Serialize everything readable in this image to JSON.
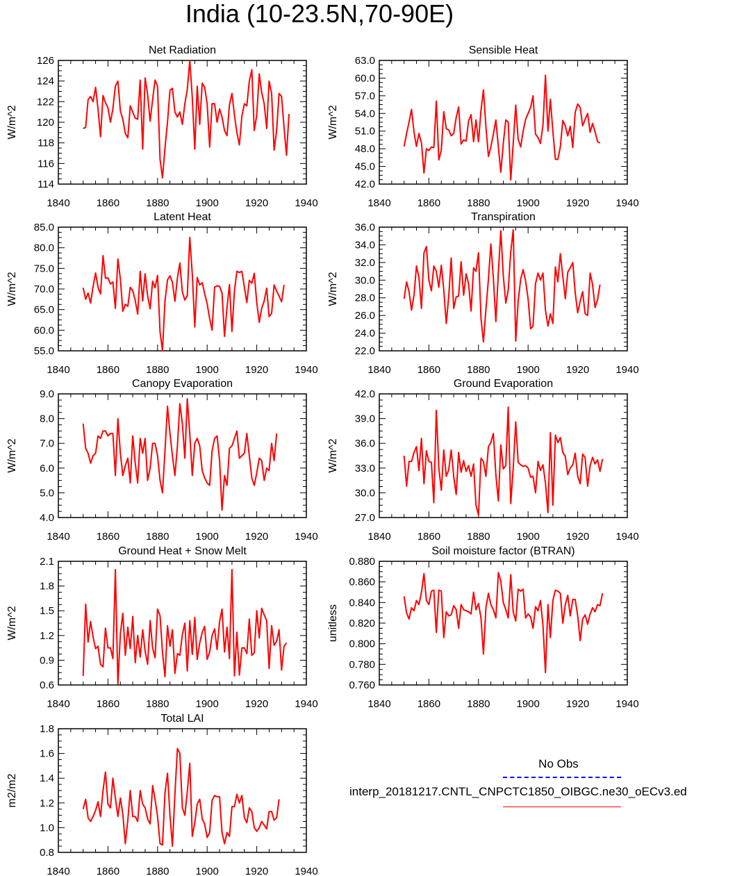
{
  "figure": {
    "title": "India (10-23.5N,70-90E)",
    "line_color": "#ff0000",
    "obs_line_color": "#0000ff"
  },
  "chart_data": [
    {
      "type": "line",
      "title": "Net Radiation",
      "xlabel": "",
      "ylabel": "W/m^2",
      "xlim": [
        1840,
        1940
      ],
      "ylim": [
        114,
        126
      ],
      "xticks": [
        1840,
        1860,
        1880,
        1900,
        1920,
        1940
      ],
      "yticks": [
        114,
        116,
        118,
        120,
        122,
        124,
        126
      ],
      "ytick_labels": [
        "114",
        "116",
        "118",
        "120",
        "122",
        "124",
        "126"
      ],
      "x_start": 1850,
      "values": [
        119.4,
        119.5,
        122.2,
        122.5,
        122.0,
        123.4,
        121.3,
        118.6,
        122.6,
        121.9,
        121.4,
        120.0,
        121.3,
        123.5,
        124.0,
        121.1,
        120.3,
        118.9,
        118.5,
        121.6,
        121.0,
        120.4,
        120.3,
        124.1,
        117.4,
        124.3,
        122.7,
        120.1,
        122.2,
        124.1,
        123.5,
        116.4,
        114.6,
        117.5,
        120.0,
        123.1,
        123.3,
        121.0,
        120.5,
        121.0,
        119.8,
        121.8,
        123.2,
        126.0,
        122.4,
        117.4,
        123.5,
        119.8,
        123.8,
        123.4,
        121.8,
        117.6,
        121.8,
        121.8,
        120.0,
        121.3,
        120.5,
        119.2,
        118.7,
        121.7,
        122.8,
        120.7,
        119.0,
        117.8,
        120.6,
        121.8,
        121.6,
        124.0,
        125.1,
        119.2,
        120.7,
        124.7,
        122.9,
        121.8,
        119.4,
        124.0,
        122.8,
        117.3,
        119.2,
        122.8,
        122.5,
        119.5,
        116.8,
        120.8
      ]
    },
    {
      "type": "line",
      "title": "Sensible Heat",
      "xlabel": "",
      "ylabel": "W/m^2",
      "xlim": [
        1840,
        1940
      ],
      "ylim": [
        42,
        63
      ],
      "xticks": [
        1840,
        1860,
        1880,
        1900,
        1920,
        1940
      ],
      "yticks": [
        42,
        45,
        48,
        51,
        54,
        57,
        60,
        63
      ],
      "ytick_labels": [
        "42.0",
        "45.0",
        "48.0",
        "51.0",
        "54.0",
        "57.0",
        "60.0",
        "63.0"
      ],
      "x_start": 1850,
      "values": [
        48.4,
        50.6,
        52.5,
        54.7,
        50.8,
        48.4,
        50.6,
        49.0,
        43.9,
        48.0,
        47.7,
        48.3,
        48.2,
        56.1,
        46.1,
        47.8,
        54.3,
        51.4,
        51.2,
        50.2,
        50.6,
        53.3,
        55.1,
        48.8,
        49.5,
        49.3,
        52.7,
        53.8,
        49.2,
        52.9,
        49.2,
        54.5,
        58.0,
        51.7,
        46.7,
        48.3,
        50.5,
        52.9,
        48.3,
        44.0,
        48.9,
        52.9,
        52.5,
        42.7,
        48.9,
        55.4,
        49.6,
        48.3,
        51.0,
        53.0,
        54.0,
        55.0,
        57.0,
        50.5,
        49.9,
        48.9,
        52.0,
        60.5,
        51.0,
        56.4,
        50.9,
        46.2,
        46.2,
        48.3,
        52.8,
        51.9,
        50.2,
        51.8,
        48.2,
        54.2,
        55.6,
        55.0,
        51.9,
        53.0,
        54.0,
        50.8,
        52.3,
        50.9,
        49.2,
        49.0
      ]
    },
    {
      "type": "line",
      "title": "Latent Heat",
      "xlabel": "",
      "ylabel": "W/m^2",
      "xlim": [
        1840,
        1940
      ],
      "ylim": [
        55,
        85
      ],
      "xticks": [
        1840,
        1860,
        1880,
        1900,
        1920,
        1940
      ],
      "yticks": [
        55,
        60,
        65,
        70,
        75,
        80,
        85
      ],
      "ytick_labels": [
        "55.0",
        "60.0",
        "65.0",
        "70.0",
        "75.0",
        "80.0",
        "85.0"
      ],
      "x_start": 1850,
      "values": [
        70.3,
        67.5,
        69.0,
        66.6,
        70.6,
        73.9,
        70.4,
        68.8,
        78.1,
        72.6,
        72.7,
        71.2,
        71.7,
        65.3,
        77.3,
        72.4,
        64.6,
        66.3,
        65.8,
        70.4,
        69.6,
        67.2,
        63.9,
        74.3,
        67.1,
        73.7,
        68.4,
        65.2,
        71.9,
        70.3,
        73.3,
        59.6,
        55.0,
        67.1,
        72.2,
        73.2,
        71.6,
        67.0,
        72.7,
        76.3,
        69.3,
        67.3,
        68.4,
        82.5,
        73.6,
        60.8,
        72.8,
        71.0,
        71.5,
        68.9,
        66.4,
        62.8,
        60.0,
        70.4,
        70.8,
        70.6,
        69.0,
        58.5,
        65.5,
        71.1,
        59.7,
        69.6,
        74.3,
        74.0,
        74.3,
        70.4,
        66.7,
        72.1,
        71.4,
        73.8,
        66.7,
        61.9,
        65.3,
        67.1,
        70.2,
        63.3,
        64.1,
        71.0,
        69.5,
        68.3,
        66.9,
        71.0
      ]
    },
    {
      "type": "line",
      "title": "Transpiration",
      "xlabel": "",
      "ylabel": "W/m^2",
      "xlim": [
        1840,
        1940
      ],
      "ylim": [
        22,
        36
      ],
      "xticks": [
        1840,
        1860,
        1880,
        1900,
        1920,
        1940
      ],
      "yticks": [
        22,
        24,
        26,
        28,
        30,
        32,
        34,
        36
      ],
      "ytick_labels": [
        "22.0",
        "24.0",
        "26.0",
        "28.0",
        "30.0",
        "32.0",
        "34.0",
        "36.0"
      ],
      "x_start": 1850,
      "values": [
        27.9,
        29.8,
        28.7,
        26.6,
        28.3,
        31.6,
        30.3,
        26.8,
        33.1,
        33.8,
        30.0,
        28.8,
        31.6,
        31.0,
        29.2,
        31.7,
        28.9,
        25.1,
        28.2,
        32.5,
        26.8,
        28.1,
        28.2,
        32.1,
        28.3,
        30.7,
        29.6,
        26.5,
        31.4,
        31.0,
        33.1,
        25.7,
        23.0,
        26.7,
        30.1,
        34.1,
        30.2,
        25.3,
        30.9,
        35.6,
        30.5,
        27.4,
        28.9,
        33.2,
        35.7,
        23.1,
        27.6,
        30.1,
        31.2,
        29.9,
        27.9,
        24.5,
        24.8,
        29.6,
        30.8,
        30.0,
        30.8,
        26.6,
        24.8,
        26.2,
        25.1,
        31.5,
        29.8,
        33.0,
        30.4,
        27.9,
        30.9,
        31.4,
        32.0,
        28.6,
        26.3,
        27.6,
        28.7,
        26.2,
        26.0,
        30.8,
        29.5,
        26.9,
        27.8,
        29.5
      ]
    },
    {
      "type": "line",
      "title": "Canopy Evaporation",
      "xlabel": "",
      "ylabel": "W/m^2",
      "xlim": [
        1840,
        1940
      ],
      "ylim": [
        4,
        9
      ],
      "xticks": [
        1840,
        1860,
        1880,
        1900,
        1920,
        1940
      ],
      "yticks": [
        4,
        5,
        6,
        7,
        8,
        9
      ],
      "ytick_labels": [
        "4.0",
        "5.0",
        "6.0",
        "7.0",
        "8.0",
        "9.0"
      ],
      "x_start": 1850,
      "values": [
        7.8,
        6.8,
        6.6,
        6.2,
        6.5,
        6.6,
        7.3,
        7.2,
        7.5,
        7.5,
        7.3,
        7.4,
        7.4,
        5.7,
        8.0,
        6.6,
        5.7,
        6.1,
        6.4,
        5.4,
        7.3,
        6.2,
        5.4,
        7.2,
        6.6,
        7.2,
        5.5,
        6.0,
        7.0,
        7.0,
        6.5,
        5.5,
        5.0,
        6.7,
        8.5,
        7.4,
        6.5,
        5.7,
        6.9,
        8.6,
        7.8,
        6.4,
        8.8,
        7.4,
        5.7,
        7.0,
        7.2,
        6.9,
        5.9,
        5.6,
        5.4,
        5.3,
        6.7,
        7.2,
        7.3,
        6.3,
        4.3,
        5.7,
        5.3,
        6.8,
        6.9,
        7.2,
        7.5,
        6.4,
        6.5,
        6.6,
        7.4,
        6.5,
        5.6,
        5.3,
        5.8,
        6.4,
        6.3,
        5.5,
        6.0,
        5.9,
        7.0,
        6.3,
        7.4
      ]
    },
    {
      "type": "line",
      "title": "Ground Evaporation",
      "xlabel": "",
      "ylabel": "W/m^2",
      "xlim": [
        1840,
        1940
      ],
      "ylim": [
        27,
        42
      ],
      "xticks": [
        1840,
        1860,
        1880,
        1900,
        1920,
        1940
      ],
      "yticks": [
        27,
        30,
        33,
        36,
        39,
        42
      ],
      "ytick_labels": [
        "27.0",
        "30.0",
        "33.0",
        "36.0",
        "39.0",
        "42.0"
      ],
      "x_start": 1850,
      "values": [
        34.5,
        30.8,
        33.8,
        33.8,
        34.9,
        35.6,
        32.7,
        36.6,
        31.1,
        35.1,
        33.8,
        33.7,
        28.8,
        40.0,
        33.0,
        30.3,
        35.2,
        32.0,
        32.8,
        35.2,
        32.0,
        29.8,
        34.9,
        32.5,
        33.9,
        32.6,
        33.3,
        32.0,
        33.5,
        28.5,
        27.3,
        34.2,
        33.8,
        32.0,
        35.6,
        36.1,
        37.2,
        32.2,
        29.0,
        35.8,
        32.9,
        33.3,
        40.4,
        28.7,
        33.0,
        38.6,
        33.7,
        33.4,
        33.2,
        33.3,
        33.0,
        31.9,
        32.0,
        30.0,
        33.8,
        32.7,
        33.4,
        31.2,
        27.6,
        37.3,
        28.5,
        37.0,
        36.1,
        36.7,
        34.9,
        34.4,
        32.2,
        33.0,
        33.4,
        34.8,
        32.0,
        31.1,
        34.7,
        34.3,
        30.8,
        33.3,
        34.3,
        33.5,
        34.0,
        32.6,
        34.1
      ]
    },
    {
      "type": "line",
      "title": "Ground Heat + Snow Melt",
      "xlabel": "",
      "ylabel": "W/m^2",
      "xlim": [
        1840,
        1940
      ],
      "ylim": [
        0.6,
        2.1
      ],
      "xticks": [
        1840,
        1860,
        1880,
        1900,
        1920,
        1940
      ],
      "yticks": [
        0.6,
        0.9,
        1.2,
        1.5,
        1.8,
        2.1
      ],
      "ytick_labels": [
        "0.6",
        "0.9",
        "1.2",
        "1.5",
        "1.8",
        "2.1"
      ],
      "x_start": 1850,
      "values": [
        0.71,
        1.58,
        1.12,
        1.37,
        1.18,
        1.04,
        1.07,
        0.85,
        0.82,
        1.29,
        1.05,
        1.05,
        0.92,
        2.0,
        0.61,
        1.22,
        1.47,
        0.96,
        1.3,
        1.04,
        1.43,
        0.87,
        1.2,
        0.94,
        1.27,
        1.01,
        0.85,
        1.38,
        1.05,
        0.93,
        1.52,
        1.44,
        1.0,
        0.7,
        1.32,
        1.07,
        1.27,
        0.74,
        0.98,
        0.96,
        1.21,
        1.35,
        0.77,
        1.38,
        0.97,
        1.42,
        0.91,
        1.11,
        1.24,
        1.31,
        0.91,
        1.0,
        1.2,
        1.28,
        1.03,
        1.37,
        1.52,
        1.0,
        1.3,
        0.92,
        2.0,
        0.71,
        1.24,
        0.72,
        1.05,
        1.05,
        0.98,
        1.4,
        0.96,
        0.99,
        1.5,
        1.17,
        1.53,
        1.45,
        1.38,
        0.8,
        1.32,
        1.08,
        1.13,
        1.27,
        0.78,
        1.07,
        1.11
      ]
    },
    {
      "type": "line",
      "title": "Soil moisture factor (BTRAN)",
      "xlabel": "",
      "ylabel": "unitless",
      "xlim": [
        1840,
        1940
      ],
      "ylim": [
        0.76,
        0.88
      ],
      "xticks": [
        1840,
        1860,
        1880,
        1900,
        1920,
        1940
      ],
      "yticks": [
        0.76,
        0.78,
        0.8,
        0.82,
        0.84,
        0.86,
        0.88
      ],
      "ytick_labels": [
        "0.760",
        "0.780",
        "0.800",
        "0.820",
        "0.840",
        "0.860",
        "0.880"
      ],
      "x_start": 1850,
      "values": [
        0.846,
        0.83,
        0.824,
        0.835,
        0.832,
        0.842,
        0.838,
        0.85,
        0.868,
        0.842,
        0.838,
        0.851,
        0.852,
        0.811,
        0.852,
        0.851,
        0.806,
        0.831,
        0.827,
        0.828,
        0.837,
        0.833,
        0.815,
        0.838,
        0.833,
        0.832,
        0.831,
        0.829,
        0.85,
        0.833,
        0.839,
        0.825,
        0.79,
        0.835,
        0.849,
        0.838,
        0.833,
        0.825,
        0.869,
        0.861,
        0.84,
        0.833,
        0.825,
        0.867,
        0.831,
        0.822,
        0.853,
        0.851,
        0.853,
        0.825,
        0.829,
        0.826,
        0.815,
        0.836,
        0.832,
        0.842,
        0.818,
        0.772,
        0.838,
        0.806,
        0.842,
        0.852,
        0.851,
        0.849,
        0.82,
        0.838,
        0.847,
        0.827,
        0.843,
        0.843,
        0.827,
        0.803,
        0.824,
        0.828,
        0.819,
        0.829,
        0.835,
        0.831,
        0.838,
        0.837,
        0.849
      ]
    },
    {
      "type": "line",
      "title": "Total LAI",
      "xlabel": "",
      "ylabel": "m2/m2",
      "xlim": [
        1840,
        1940
      ],
      "ylim": [
        0.8,
        1.8
      ],
      "xticks": [
        1840,
        1860,
        1880,
        1900,
        1920,
        1940
      ],
      "yticks": [
        0.8,
        1.0,
        1.2,
        1.4,
        1.6,
        1.8
      ],
      "ytick_labels": [
        "0.8",
        "1.0",
        "1.2",
        "1.4",
        "1.6",
        "1.8"
      ],
      "x_start": 1850,
      "values": [
        1.15,
        1.23,
        1.08,
        1.05,
        1.09,
        1.14,
        1.21,
        1.09,
        1.3,
        1.45,
        1.19,
        1.16,
        1.4,
        1.24,
        1.09,
        1.24,
        1.11,
        0.87,
        1.06,
        1.3,
        1.09,
        1.09,
        1.05,
        1.3,
        1.19,
        1.16,
        1.07,
        1.03,
        1.34,
        1.23,
        1.09,
        0.87,
        0.86,
        1.28,
        1.44,
        1.1,
        0.85,
        1.27,
        1.64,
        1.6,
        1.16,
        1.1,
        1.29,
        1.52,
        0.93,
        1.04,
        1.19,
        1.23,
        1.07,
        1.03,
        0.92,
        0.96,
        1.22,
        1.26,
        1.25,
        1.25,
        0.96,
        0.87,
        0.96,
        0.93,
        1.17,
        1.17,
        1.27,
        1.2,
        1.26,
        1.08,
        1.04,
        1.16,
        1.13,
        1.0,
        0.97,
        1.0,
        1.05,
        1.02,
        0.99,
        1.13,
        1.13,
        1.06,
        1.08,
        1.23
      ]
    }
  ],
  "legend": {
    "entries": [
      {
        "label": "No Obs",
        "style": "dashed"
      },
      {
        "label": "interp_20181217.CNTL_CNPCTC1850_OIBGC.ne30_oECv3.ed",
        "style": "solid"
      }
    ]
  }
}
